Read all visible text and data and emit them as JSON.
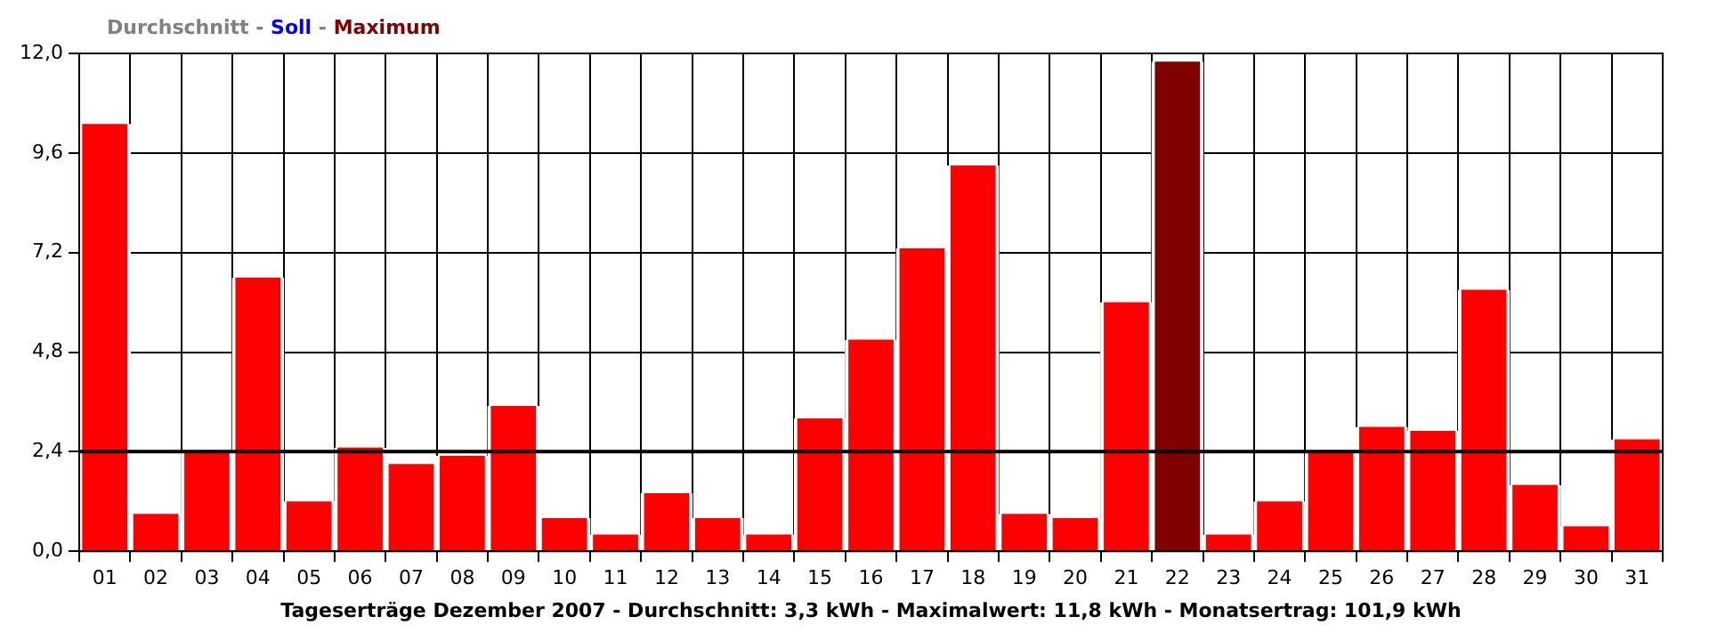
{
  "chart_data": {
    "type": "bar",
    "annotations": [
      "Durchschnitt",
      "-",
      "Soll",
      "-",
      "Maximum"
    ],
    "xlabel": "Tageserträge Dezember 2007 - Durchschnitt: 3,3 kWh - Maximalwert: 11,8 kWh - Monatsertrag: 101,9 kWh",
    "categories": [
      "01",
      "02",
      "03",
      "04",
      "05",
      "06",
      "07",
      "08",
      "09",
      "10",
      "11",
      "12",
      "13",
      "14",
      "15",
      "16",
      "17",
      "18",
      "19",
      "20",
      "21",
      "22",
      "23",
      "24",
      "25",
      "26",
      "27",
      "28",
      "29",
      "30",
      "31"
    ],
    "values": [
      10.3,
      0.9,
      2.4,
      6.6,
      1.2,
      2.5,
      2.1,
      2.3,
      3.5,
      0.8,
      0.4,
      1.4,
      0.8,
      0.4,
      3.2,
      5.1,
      7.3,
      9.3,
      0.9,
      0.8,
      6.0,
      11.8,
      0.4,
      1.2,
      2.4,
      3.0,
      2.9,
      6.3,
      1.6,
      0.6,
      2.7
    ],
    "colors": [
      "#ff0000",
      "#ff0000",
      "#ff0000",
      "#ff0000",
      "#ff0000",
      "#ff0000",
      "#ff0000",
      "#ff0000",
      "#ff0000",
      "#ff0000",
      "#ff0000",
      "#ff0000",
      "#ff0000",
      "#ff0000",
      "#ff0000",
      "#ff0000",
      "#ff0000",
      "#ff0000",
      "#ff0000",
      "#ff0000",
      "#ff0000",
      "#800000",
      "#ff0000",
      "#ff0000",
      "#ff0000",
      "#ff0000",
      "#ff0000",
      "#ff0000",
      "#ff0000",
      "#ff0000",
      "#ff0000"
    ],
    "ylim": [
      0,
      12
    ],
    "yticks": [
      {
        "value": 0,
        "label": "0,0"
      },
      {
        "value": 2.4,
        "label": "2,4"
      },
      {
        "value": 4.8,
        "label": "4,8"
      },
      {
        "value": 7.2,
        "label": "7,2"
      },
      {
        "value": 9.6,
        "label": "9,6"
      },
      {
        "value": 12,
        "label": "12,0"
      }
    ],
    "ref_lines": [
      {
        "axis": "y",
        "value": 2.4,
        "color": "#000000"
      }
    ],
    "grid": true,
    "legend": false
  }
}
